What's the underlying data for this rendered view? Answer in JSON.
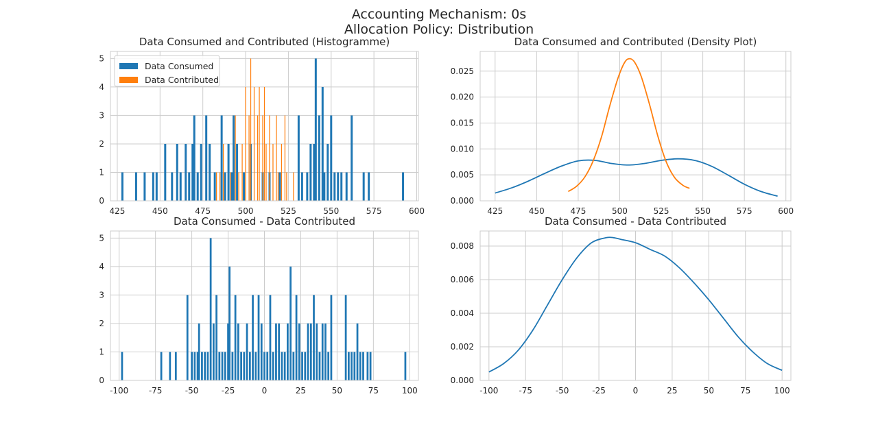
{
  "figure": {
    "suptitle_line1": "Accounting Mechanism: 0s",
    "suptitle_line2": "Allocation Policy: Distribution",
    "colors": {
      "consumed": "#1f77b4",
      "contributed": "#ff7f0e",
      "grid": "#cccccc",
      "text": "#262626"
    }
  },
  "chart_data": [
    {
      "type": "bar",
      "title": "Data Consumed and Contributed (Histogramme)",
      "xlabel": "",
      "ylabel": "",
      "xlim": [
        421,
        601
      ],
      "ylim": [
        0,
        5.25
      ],
      "xticks": [
        425,
        450,
        475,
        500,
        525,
        550,
        575,
        600
      ],
      "yticks": [
        0,
        1,
        2,
        3,
        4,
        5
      ],
      "grid": true,
      "legend": {
        "position": "top-left",
        "entries": [
          "Data Consumed",
          "Data Contributed"
        ]
      },
      "series": [
        {
          "name": "Data Consumed",
          "color": "#1f77b4",
          "bar_width": 1.2,
          "points": [
            [
              428,
              1
            ],
            [
              436,
              1
            ],
            [
              441,
              1
            ],
            [
              446,
              1
            ],
            [
              448,
              1
            ],
            [
              453,
              2
            ],
            [
              457,
              1
            ],
            [
              460,
              2
            ],
            [
              462,
              1
            ],
            [
              465,
              2
            ],
            [
              467,
              1
            ],
            [
              469,
              2
            ],
            [
              470,
              3
            ],
            [
              472,
              1
            ],
            [
              474,
              2
            ],
            [
              477,
              3
            ],
            [
              479,
              2
            ],
            [
              482,
              1
            ],
            [
              486,
              3
            ],
            [
              488,
              1
            ],
            [
              490,
              2
            ],
            [
              492,
              1
            ],
            [
              493,
              3
            ],
            [
              495,
              2
            ],
            [
              499,
              1
            ],
            [
              503,
              2
            ],
            [
              510,
              1
            ],
            [
              514,
              1
            ],
            [
              520,
              1
            ],
            [
              531,
              3
            ],
            [
              533,
              1
            ],
            [
              536,
              1
            ],
            [
              538,
              2
            ],
            [
              540,
              2
            ],
            [
              541,
              5
            ],
            [
              543,
              3
            ],
            [
              545,
              4
            ],
            [
              546,
              1
            ],
            [
              548,
              2
            ],
            [
              550,
              3
            ],
            [
              552,
              1
            ],
            [
              554,
              1
            ],
            [
              556,
              1
            ],
            [
              559,
              1
            ],
            [
              562,
              3
            ],
            [
              569,
              1
            ],
            [
              572,
              1
            ],
            [
              592,
              1
            ]
          ]
        },
        {
          "name": "Data Contributed",
          "color": "#ff7f0e",
          "bar_width": 0.5,
          "points": [
            [
              483,
              1
            ],
            [
              485,
              1
            ],
            [
              487,
              2
            ],
            [
              491,
              1
            ],
            [
              494,
              3
            ],
            [
              496,
              1
            ],
            [
              498,
              2
            ],
            [
              500,
              4
            ],
            [
              502,
              3
            ],
            [
              503,
              5
            ],
            [
              505,
              4
            ],
            [
              507,
              3
            ],
            [
              508,
              4
            ],
            [
              510,
              3
            ],
            [
              511,
              4
            ],
            [
              512,
              2
            ],
            [
              514,
              3
            ],
            [
              516,
              2
            ],
            [
              518,
              3
            ],
            [
              519,
              1
            ],
            [
              521,
              2
            ],
            [
              523,
              3
            ],
            [
              524,
              1
            ],
            [
              528,
              1
            ]
          ]
        }
      ]
    },
    {
      "type": "line",
      "title": "Data Consumed and Contributed (Density Plot)",
      "xlabel": "",
      "ylabel": "",
      "xlim": [
        416,
        603
      ],
      "ylim": [
        0,
        0.0288
      ],
      "xticks": [
        425,
        450,
        475,
        500,
        525,
        550,
        575,
        600
      ],
      "yticks": [
        0.0,
        0.005,
        0.01,
        0.015,
        0.02,
        0.025
      ],
      "ytick_labels": [
        "0.000",
        "0.005",
        "0.010",
        "0.015",
        "0.020",
        "0.025"
      ],
      "grid": true,
      "series": [
        {
          "name": "Data Consumed",
          "color": "#1f77b4",
          "x": [
            425,
            435,
            445,
            455,
            465,
            475,
            485,
            495,
            505,
            515,
            525,
            535,
            545,
            555,
            565,
            575,
            585,
            595
          ],
          "y": [
            0.0015,
            0.0025,
            0.0038,
            0.0053,
            0.0067,
            0.0077,
            0.0078,
            0.0072,
            0.0069,
            0.0072,
            0.0078,
            0.0081,
            0.0078,
            0.0067,
            0.005,
            0.0032,
            0.0018,
            0.0009
          ]
        },
        {
          "name": "Data Contributed",
          "color": "#ff7f0e",
          "x": [
            469,
            474,
            479,
            484,
            489,
            494,
            499,
            503,
            506,
            509,
            513,
            518,
            523,
            528,
            533,
            538,
            542
          ],
          "y": [
            0.0018,
            0.0028,
            0.0046,
            0.0077,
            0.0123,
            0.0183,
            0.0237,
            0.0267,
            0.0274,
            0.0267,
            0.0239,
            0.0185,
            0.0124,
            0.0075,
            0.0045,
            0.003,
            0.0024
          ]
        }
      ]
    },
    {
      "type": "bar",
      "title": "Data Consumed - Data Contributed",
      "xlabel": "",
      "ylabel": "",
      "xlim": [
        -106,
        106
      ],
      "ylim": [
        0,
        5.25
      ],
      "xticks": [
        -100,
        -75,
        -50,
        -25,
        0,
        25,
        50,
        75,
        100
      ],
      "yticks": [
        0,
        1,
        2,
        3,
        4,
        5
      ],
      "grid": true,
      "series": [
        {
          "name": "Data Consumed - Data Contributed",
          "color": "#1f77b4",
          "bar_width": 1.3,
          "points": [
            [
              -98,
              1
            ],
            [
              -71,
              1
            ],
            [
              -65,
              1
            ],
            [
              -61,
              1
            ],
            [
              -53,
              3
            ],
            [
              -50,
              1
            ],
            [
              -48,
              1
            ],
            [
              -46,
              1
            ],
            [
              -45,
              2
            ],
            [
              -43,
              1
            ],
            [
              -41,
              1
            ],
            [
              -39,
              1
            ],
            [
              -37,
              5
            ],
            [
              -35,
              2
            ],
            [
              -33,
              3
            ],
            [
              -31,
              1
            ],
            [
              -29,
              1
            ],
            [
              -27,
              1
            ],
            [
              -25,
              2
            ],
            [
              -24,
              4
            ],
            [
              -22,
              1
            ],
            [
              -20,
              3
            ],
            [
              -18,
              2
            ],
            [
              -16,
              1
            ],
            [
              -14,
              1
            ],
            [
              -12,
              2
            ],
            [
              -10,
              1
            ],
            [
              -8,
              3
            ],
            [
              -6,
              1
            ],
            [
              -4,
              3
            ],
            [
              -2,
              2
            ],
            [
              0,
              1
            ],
            [
              2,
              1
            ],
            [
              4,
              3
            ],
            [
              6,
              1
            ],
            [
              8,
              2
            ],
            [
              10,
              2
            ],
            [
              12,
              1
            ],
            [
              14,
              1
            ],
            [
              16,
              2
            ],
            [
              18,
              4
            ],
            [
              20,
              1
            ],
            [
              22,
              3
            ],
            [
              24,
              2
            ],
            [
              26,
              1
            ],
            [
              28,
              1
            ],
            [
              30,
              2
            ],
            [
              32,
              2
            ],
            [
              34,
              3
            ],
            [
              36,
              2
            ],
            [
              38,
              1
            ],
            [
              40,
              2
            ],
            [
              42,
              2
            ],
            [
              44,
              1
            ],
            [
              46,
              3
            ],
            [
              56,
              3
            ],
            [
              58,
              1
            ],
            [
              60,
              1
            ],
            [
              62,
              1
            ],
            [
              64,
              2
            ],
            [
              66,
              1
            ],
            [
              68,
              1
            ],
            [
              71,
              1
            ],
            [
              73,
              1
            ],
            [
              97,
              1
            ]
          ]
        }
      ]
    },
    {
      "type": "line",
      "title": "Data Consumed - Data Contributed",
      "xlabel": "",
      "ylabel": "",
      "xlim": [
        -106,
        106
      ],
      "ylim": [
        0,
        0.0089
      ],
      "xticks": [
        -100,
        -75,
        -50,
        -25,
        0,
        25,
        50,
        75,
        100
      ],
      "yticks": [
        0.0,
        0.002,
        0.004,
        0.006,
        0.008
      ],
      "ytick_labels": [
        "0.000",
        "0.002",
        "0.004",
        "0.006",
        "0.008"
      ],
      "grid": true,
      "series": [
        {
          "name": "Data Consumed - Data Contributed",
          "color": "#1f77b4",
          "x": [
            -100,
            -90,
            -80,
            -70,
            -60,
            -50,
            -40,
            -30,
            -20,
            -15,
            -10,
            0,
            10,
            20,
            30,
            40,
            50,
            60,
            70,
            80,
            90,
            100
          ],
          "y": [
            0.0005,
            0.001,
            0.0018,
            0.003,
            0.0045,
            0.006,
            0.0073,
            0.0082,
            0.0085,
            0.0085,
            0.0084,
            0.0082,
            0.0078,
            0.0074,
            0.0067,
            0.0058,
            0.0048,
            0.0037,
            0.0026,
            0.0017,
            0.001,
            0.0006
          ]
        }
      ]
    }
  ]
}
